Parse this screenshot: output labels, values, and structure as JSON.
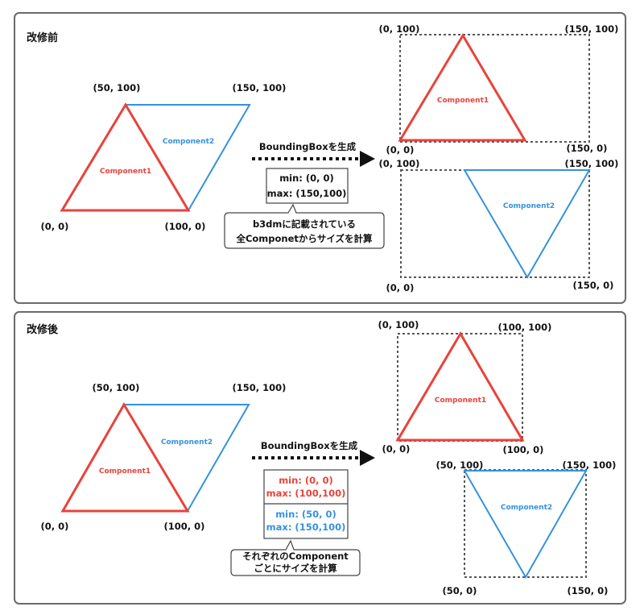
{
  "colors": {
    "component1": "#e8433b",
    "component2": "#3592dd",
    "panel_border": "#6a6a6a",
    "dotted_box": "#555555",
    "text": "#111111"
  },
  "before": {
    "title": "改修前",
    "triangle_labels": {
      "top_left": "(50, 100)",
      "top_right": "(150, 100)",
      "bottom_left": "(0, 0)",
      "bottom_mid": "(100, 0)"
    },
    "component1": "Component1",
    "component2": "Component2",
    "arrow_label": "BoundingBoxを生成",
    "bbox": {
      "min": "min: (0, 0)",
      "max": "max: (150,100)"
    },
    "note": {
      "line1": "b3dmに記載されている",
      "line2": "全Componetからサイズを計算"
    },
    "result1": {
      "top_left": "(0, 100)",
      "top_right": "(150, 100)",
      "bottom_left": "(0, 0)",
      "bottom_right": "(150, 0)",
      "label": "Component1"
    },
    "result2": {
      "top_left": "(0, 100)",
      "top_right": "(150, 100)",
      "bottom_left": "(0, 0)",
      "bottom_right": "(150, 0)",
      "label": "Component2"
    }
  },
  "after": {
    "title": "改修後",
    "triangle_labels": {
      "top_left": "(50, 100)",
      "top_right": "(150, 100)",
      "bottom_left": "(0, 0)",
      "bottom_mid": "(100, 0)"
    },
    "component1": "Component1",
    "component2": "Component2",
    "arrow_label": "BoundingBoxを生成",
    "bbox1": {
      "min": "min: (0, 0)",
      "max": "max: (100,100)"
    },
    "bbox2": {
      "min": "min: (50, 0)",
      "max": "max: (150,100)"
    },
    "note": {
      "line1": "それぞれのComponent",
      "line2": "ごとにサイズを計算"
    },
    "result1": {
      "top_left": "(0, 100)",
      "top_right": "(100, 100)",
      "bottom_left": "(0, 0)",
      "bottom_right": "(100, 0)",
      "label": "Component1"
    },
    "result2": {
      "top_left": "(50, 100)",
      "top_right": "(150, 100)",
      "bottom_left": "(50, 0)",
      "bottom_right": "(150, 0)",
      "label": "Component2"
    }
  }
}
